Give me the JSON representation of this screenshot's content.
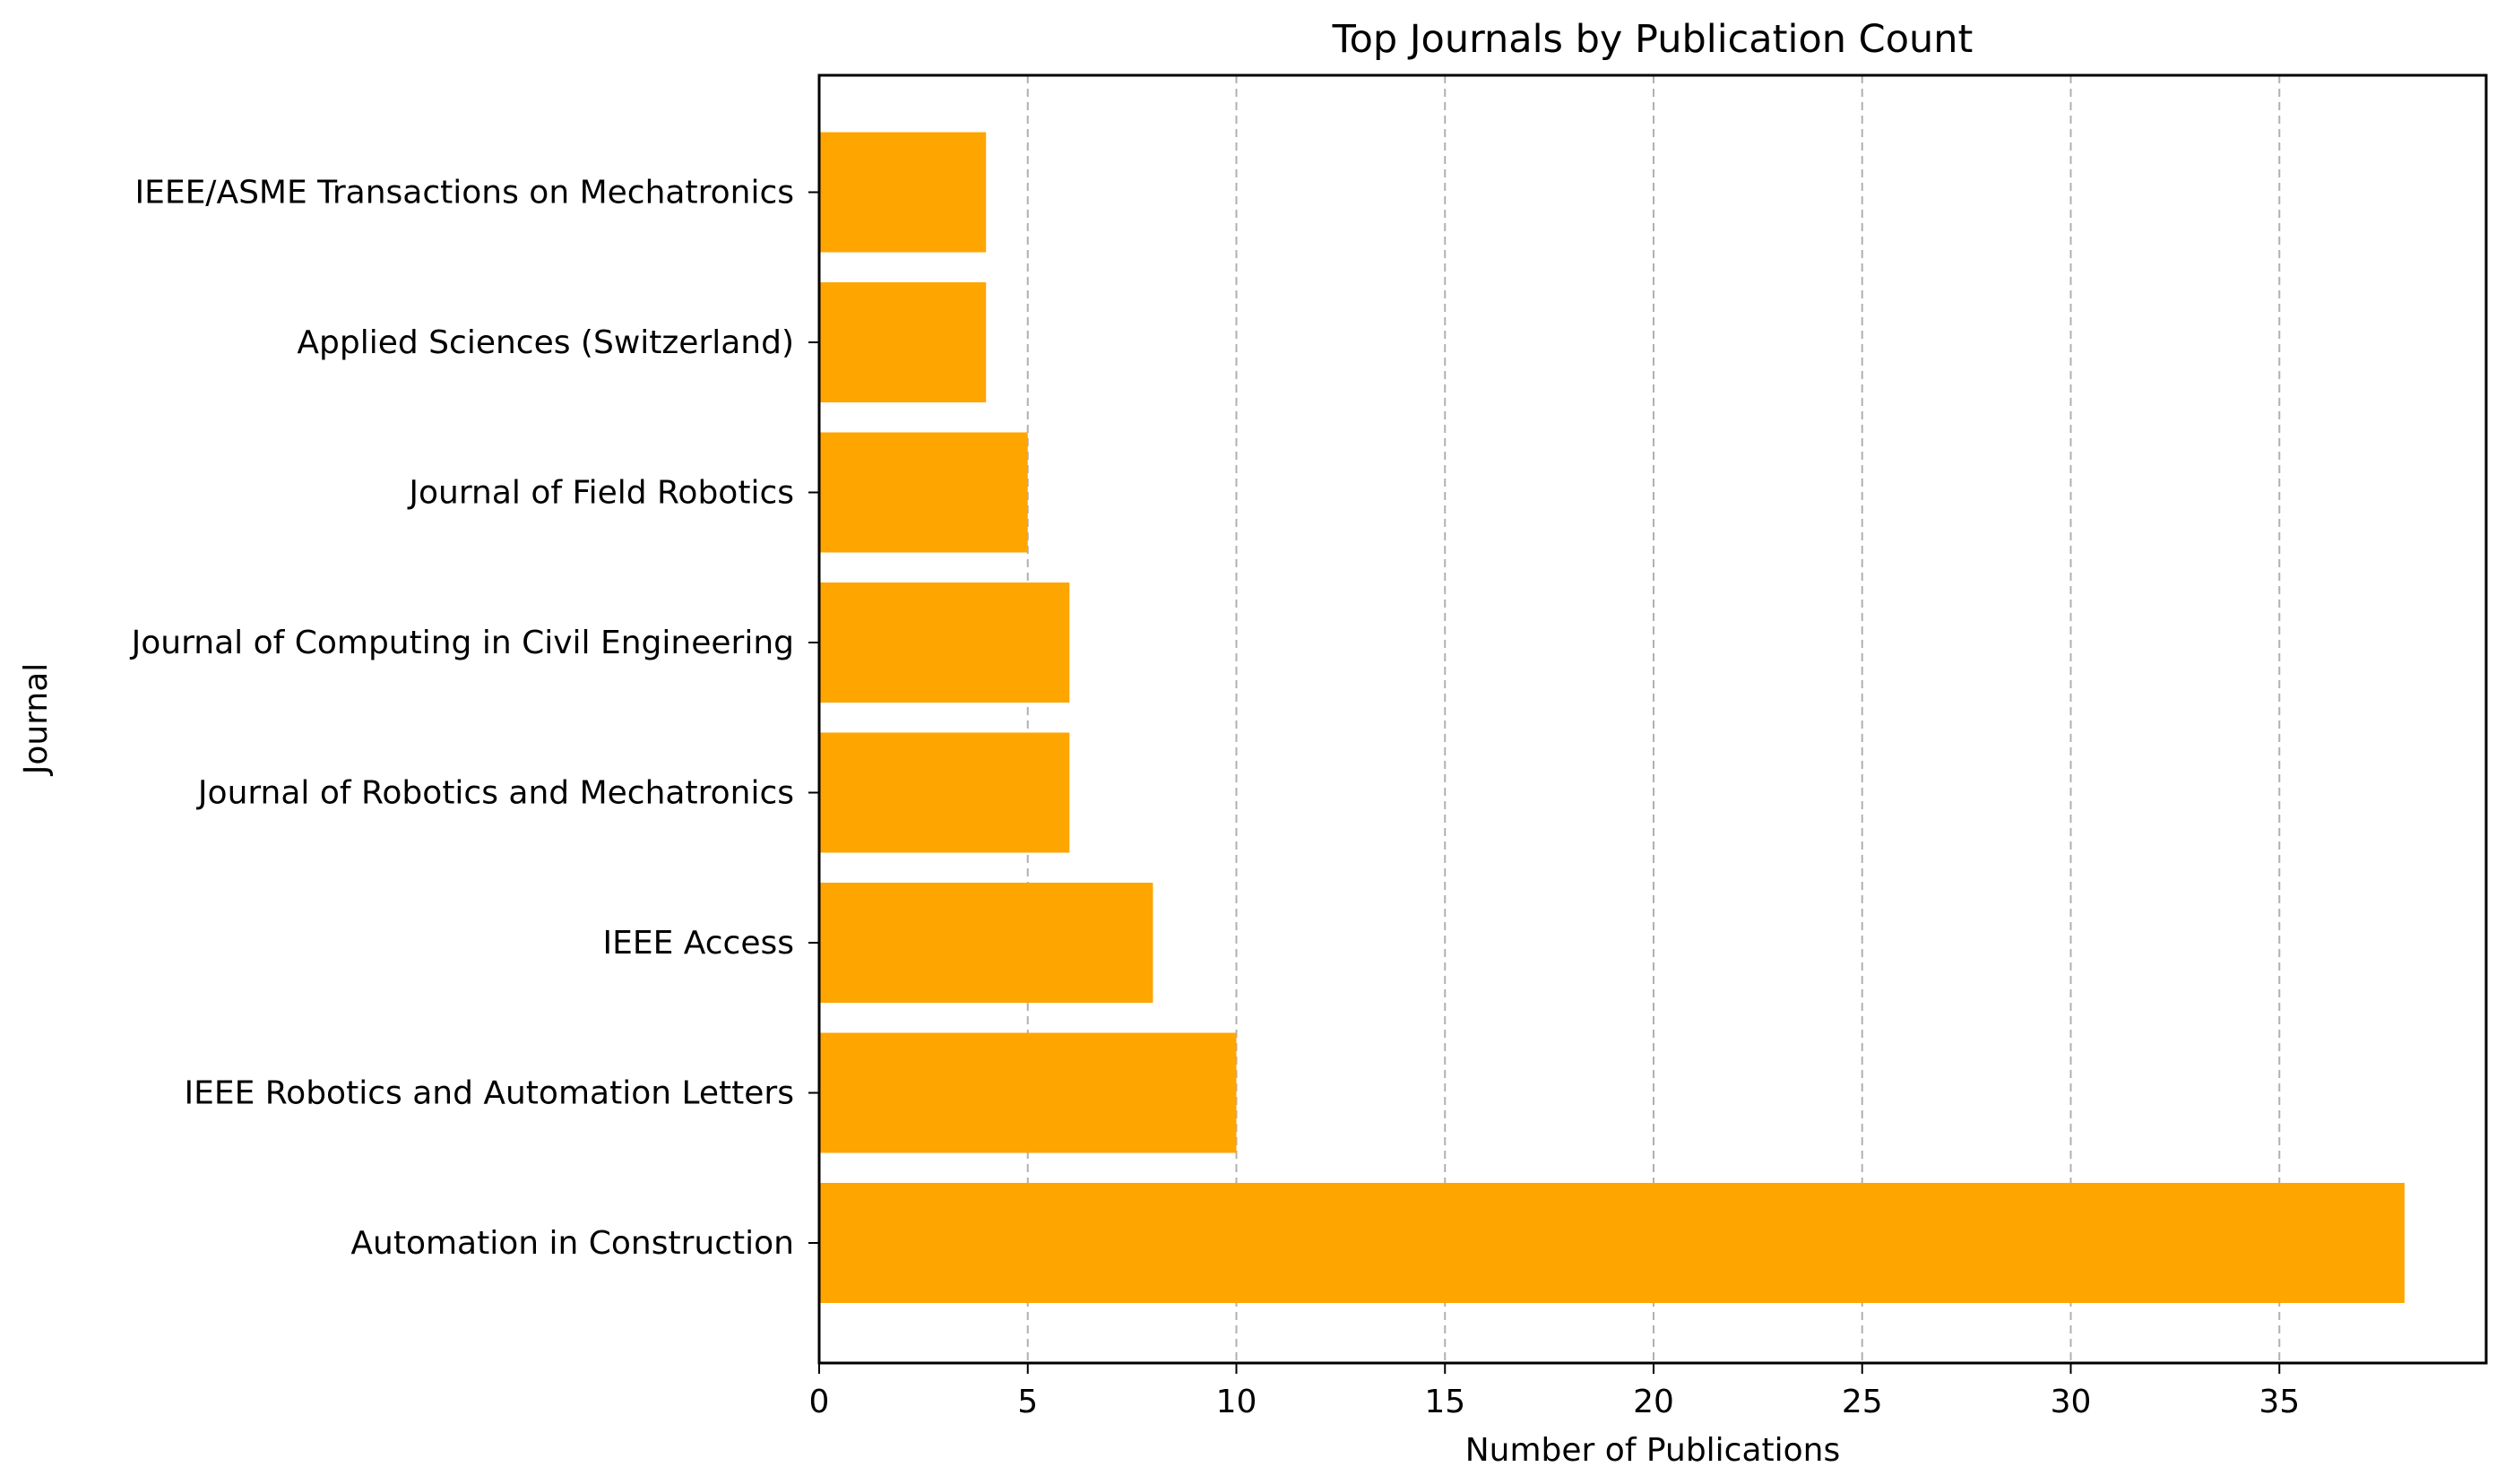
{
  "chart_data": {
    "type": "bar",
    "orientation": "horizontal",
    "title": "Top Journals by Publication Count",
    "xlabel": "Number of Publications",
    "ylabel": "Journal",
    "categories": [
      "Automation in Construction",
      "IEEE Robotics and Automation Letters",
      "IEEE Access",
      "Journal of Robotics and Mechatronics",
      "Journal of Computing in Civil Engineering",
      "Journal of Field Robotics",
      "Applied Sciences (Switzerland)",
      "IEEE/ASME Transactions on Mechatronics"
    ],
    "values": [
      38,
      10,
      8,
      6,
      6,
      5,
      4,
      4
    ],
    "xlim": [
      0,
      40
    ],
    "xticks": [
      "0",
      "5",
      "10",
      "15",
      "20",
      "25",
      "30",
      "35"
    ],
    "grid": "x-axis dashed",
    "bar_color": "#FFA500",
    "grid_color": "#b0b0b0"
  }
}
